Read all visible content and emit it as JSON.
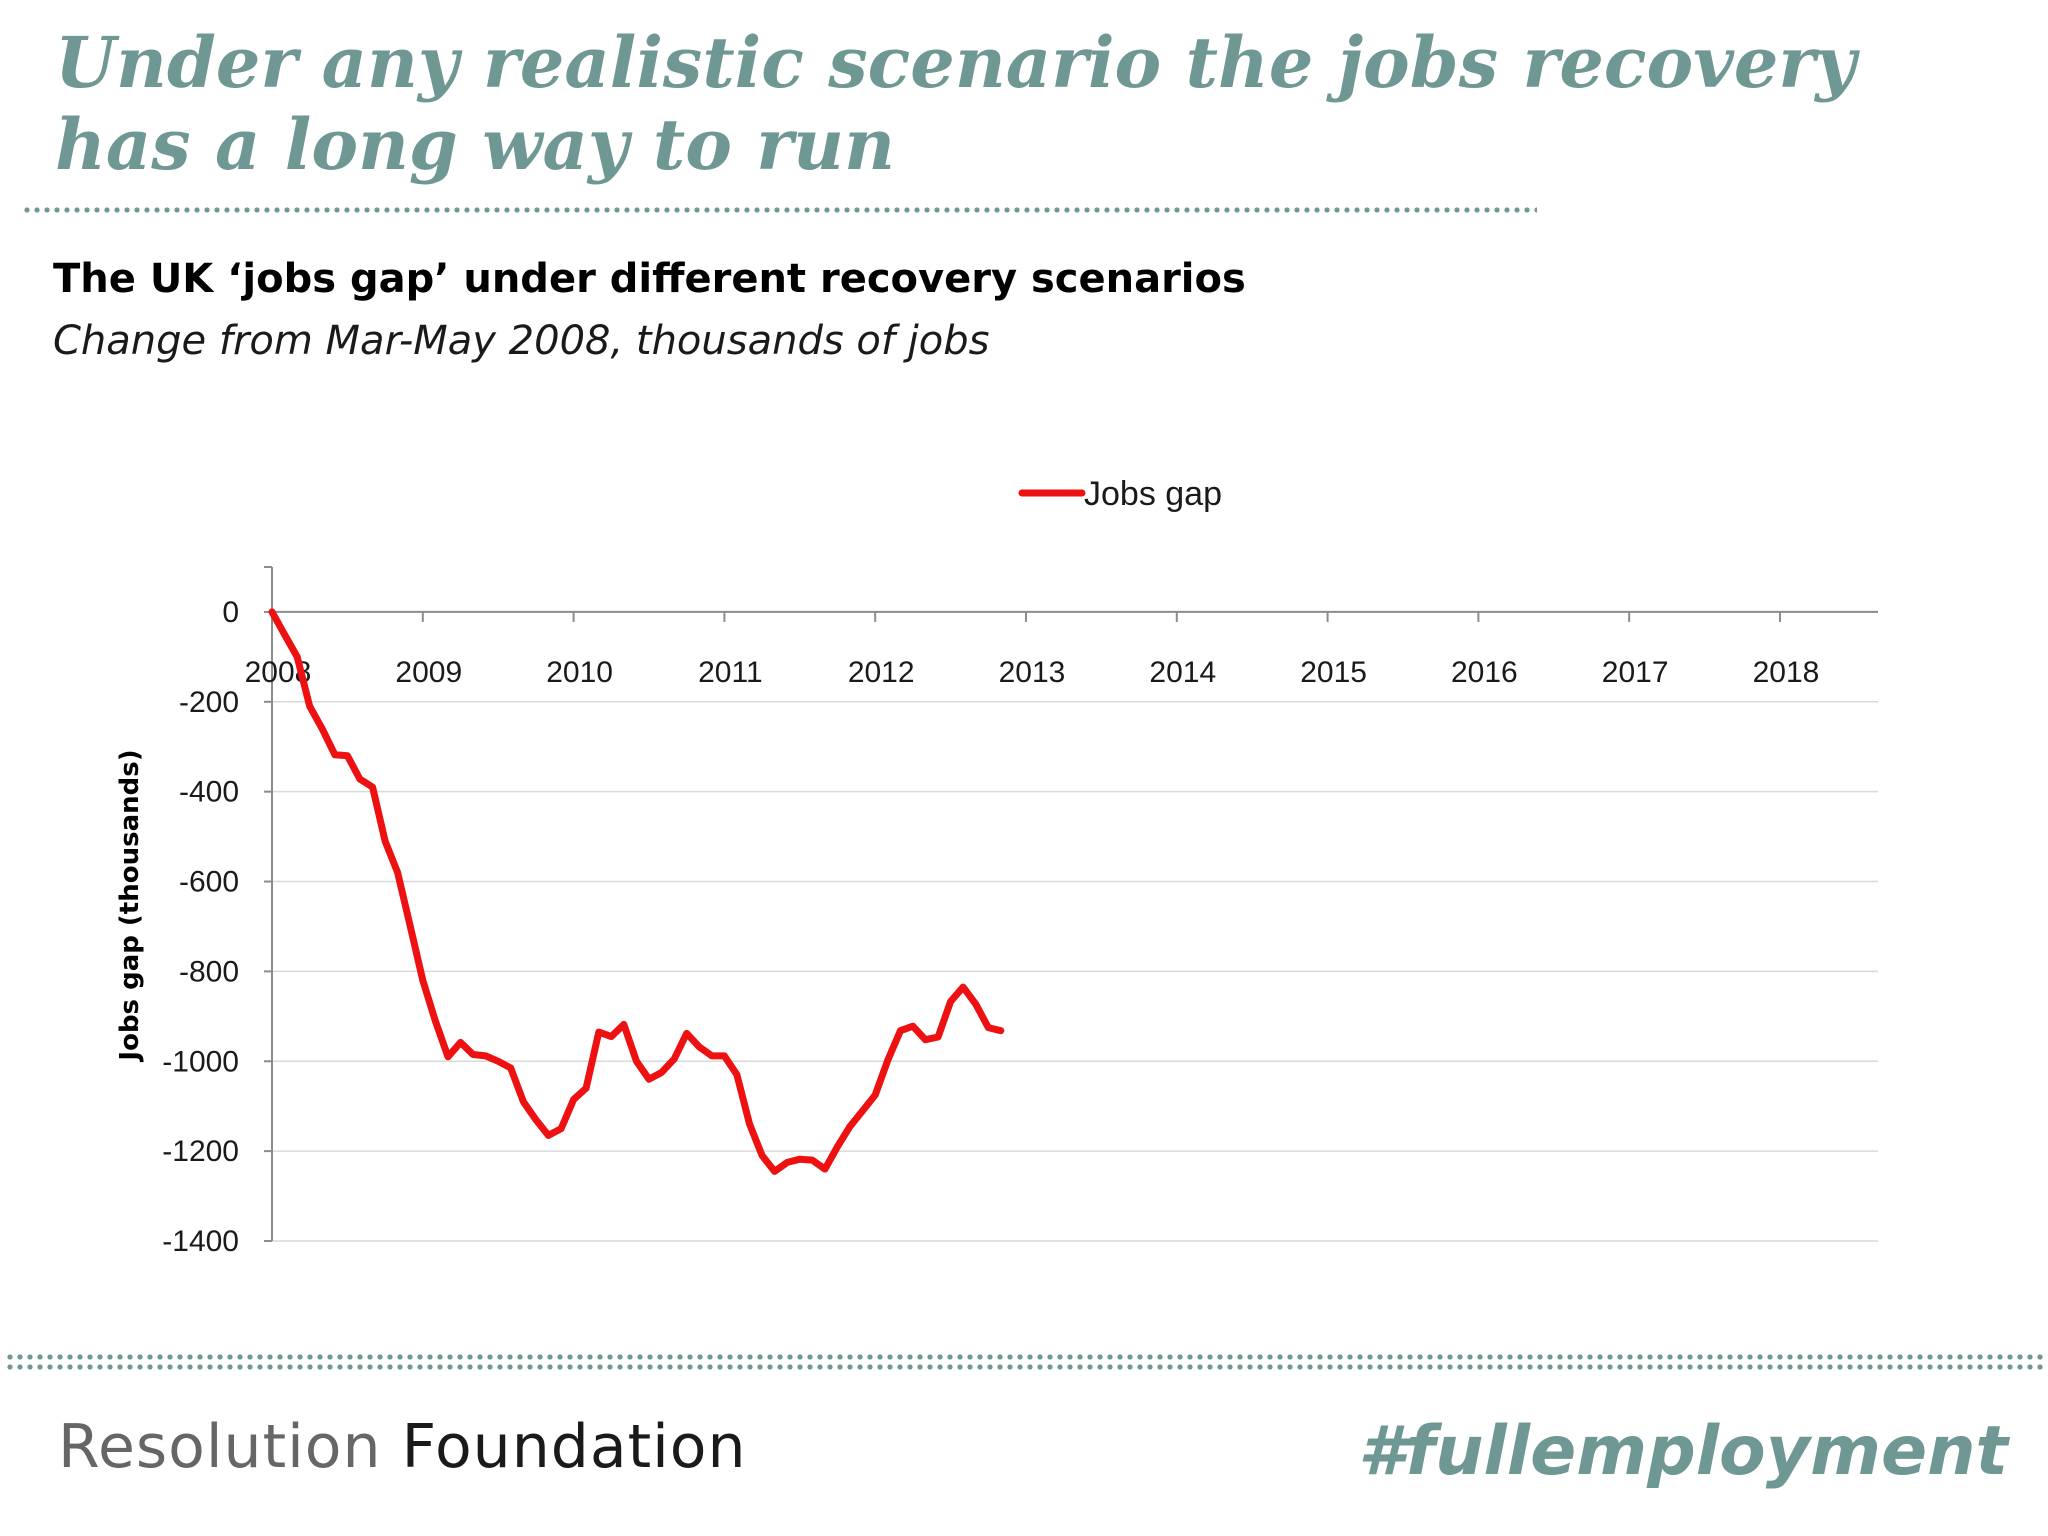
{
  "slide": {
    "headline": "Under any realistic scenario the jobs recovery has a long way to run"
  },
  "chart_data": {
    "type": "line",
    "title": "The UK ‘jobs gap’ under different recovery scenarios",
    "subtitle": "Change from Mar-May 2008, thousands of jobs",
    "xlabel": "",
    "ylabel": "Jobs gap (thousands)",
    "xlim": [
      2008,
      2018.65
    ],
    "ylim": [
      -1400,
      100
    ],
    "x_ticks": [
      2008,
      2009,
      2010,
      2011,
      2012,
      2013,
      2014,
      2015,
      2016,
      2017,
      2018
    ],
    "x_tick_labels": [
      "2008",
      "2009",
      "2010",
      "2011",
      "2012",
      "2013",
      "2014",
      "2015",
      "2016",
      "2017",
      "2018"
    ],
    "y_ticks": [
      0,
      -200,
      -400,
      -600,
      -800,
      -1000,
      -1200,
      -1400
    ],
    "y_tick_labels": [
      "0",
      "-200",
      "-400",
      "-600",
      "-800",
      "-1000",
      "-1200",
      "-1400"
    ],
    "grid": true,
    "legend": {
      "position": "top-center"
    },
    "series": [
      {
        "name": "Jobs gap",
        "color": "#ee1111",
        "points": [
          [
            2008.0,
            0
          ],
          [
            2008.083,
            -50
          ],
          [
            2008.167,
            -100
          ],
          [
            2008.25,
            -210
          ],
          [
            2008.333,
            -260
          ],
          [
            2008.417,
            -318
          ],
          [
            2008.5,
            -320
          ],
          [
            2008.583,
            -372
          ],
          [
            2008.667,
            -390
          ],
          [
            2008.75,
            -510
          ],
          [
            2008.833,
            -580
          ],
          [
            2008.917,
            -700
          ],
          [
            2009.0,
            -820
          ],
          [
            2009.083,
            -910
          ],
          [
            2009.167,
            -990
          ],
          [
            2009.25,
            -958
          ],
          [
            2009.333,
            -985
          ],
          [
            2009.417,
            -988
          ],
          [
            2009.5,
            -1000
          ],
          [
            2009.583,
            -1015
          ],
          [
            2009.667,
            -1090
          ],
          [
            2009.75,
            -1130
          ],
          [
            2009.833,
            -1165
          ],
          [
            2009.917,
            -1150
          ],
          [
            2010.0,
            -1085
          ],
          [
            2010.083,
            -1060
          ],
          [
            2010.167,
            -935
          ],
          [
            2010.25,
            -945
          ],
          [
            2010.333,
            -918
          ],
          [
            2010.417,
            -1000
          ],
          [
            2010.5,
            -1040
          ],
          [
            2010.583,
            -1025
          ],
          [
            2010.667,
            -995
          ],
          [
            2010.75,
            -938
          ],
          [
            2010.833,
            -968
          ],
          [
            2010.917,
            -988
          ],
          [
            2011.0,
            -988
          ],
          [
            2011.083,
            -1030
          ],
          [
            2011.167,
            -1140
          ],
          [
            2011.25,
            -1210
          ],
          [
            2011.333,
            -1245
          ],
          [
            2011.417,
            -1225
          ],
          [
            2011.5,
            -1218
          ],
          [
            2011.583,
            -1220
          ],
          [
            2011.667,
            -1240
          ],
          [
            2011.75,
            -1190
          ],
          [
            2011.833,
            -1145
          ],
          [
            2011.917,
            -1110
          ],
          [
            2012.0,
            -1075
          ],
          [
            2012.083,
            -998
          ],
          [
            2012.167,
            -932
          ],
          [
            2012.25,
            -922
          ],
          [
            2012.333,
            -952
          ],
          [
            2012.417,
            -946
          ],
          [
            2012.5,
            -867
          ],
          [
            2012.583,
            -835
          ],
          [
            2012.667,
            -873
          ],
          [
            2012.75,
            -925
          ],
          [
            2012.833,
            -932
          ]
        ]
      }
    ]
  }
}
